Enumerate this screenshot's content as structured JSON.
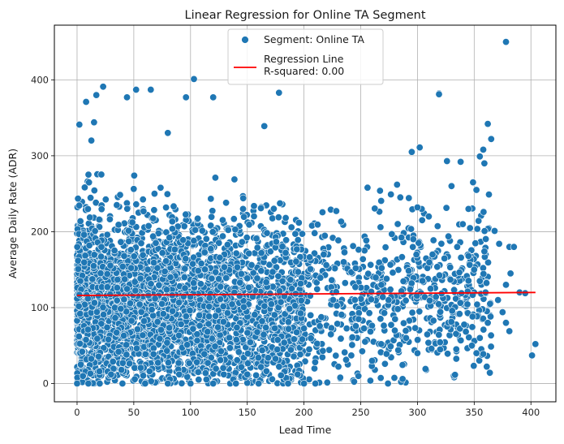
{
  "chart_data": {
    "type": "scatter",
    "title": "Linear Regression for Online TA Segment",
    "xlabel": "Lead Time",
    "ylabel": "Average Daily Rate (ADR)",
    "xlim": [
      -20,
      422
    ],
    "ylim": [
      -24,
      472
    ],
    "x_ticks": [
      0,
      50,
      100,
      150,
      200,
      250,
      300,
      350,
      400
    ],
    "y_ticks": [
      0,
      100,
      200,
      300,
      400
    ],
    "grid": true,
    "legend_position": "top-center",
    "series": [
      {
        "name": "Segment: Online TA",
        "kind": "scatter",
        "color": "#1f77b4",
        "points": [
          [
            378,
            450
          ],
          [
            103,
            401
          ],
          [
            23,
            391
          ],
          [
            52,
            387
          ],
          [
            65,
            387
          ],
          [
            8,
            371
          ],
          [
            319,
            382
          ],
          [
            178,
            383
          ],
          [
            120,
            377
          ],
          [
            44,
            377
          ],
          [
            96,
            377
          ],
          [
            17,
            380
          ],
          [
            362,
            342
          ],
          [
            319,
            381
          ],
          [
            2,
            341
          ],
          [
            15,
            344
          ],
          [
            80,
            330
          ],
          [
            165,
            339
          ],
          [
            302,
            311
          ],
          [
            338,
            292
          ],
          [
            326,
            293
          ],
          [
            358,
            308
          ],
          [
            365,
            322
          ],
          [
            355,
            299
          ],
          [
            359,
            290
          ],
          [
            363,
            249
          ],
          [
            368,
            201
          ],
          [
            372,
            184
          ],
          [
            381,
            180
          ],
          [
            385,
            180
          ],
          [
            382,
            145
          ],
          [
            378,
            130
          ],
          [
            371,
            110
          ],
          [
            375,
            94
          ],
          [
            378,
            80
          ],
          [
            381,
            69
          ],
          [
            390,
            120
          ],
          [
            395,
            119
          ],
          [
            401,
            37
          ],
          [
            404,
            52
          ],
          [
            352,
            40
          ],
          [
            358,
            39
          ],
          [
            274,
            0
          ],
          [
            260,
            30
          ],
          [
            268,
            52
          ],
          [
            186,
            0
          ],
          [
            200,
            0
          ],
          [
            210,
            0
          ],
          [
            160,
            0
          ],
          [
            140,
            0
          ],
          [
            120,
            0
          ],
          [
            100,
            0
          ],
          [
            80,
            0
          ],
          [
            60,
            0
          ],
          [
            40,
            0
          ],
          [
            20,
            0
          ],
          [
            10,
            0
          ],
          [
            0,
            0
          ],
          [
            30,
            12
          ],
          [
            90,
            12
          ],
          [
            150,
            12
          ],
          [
            232,
            8
          ],
          [
            248,
            10
          ],
          [
            256,
            258
          ],
          [
            295,
            305
          ],
          [
            282,
            262
          ],
          [
            300,
            232
          ],
          [
            310,
            220
          ],
          [
            330,
            260
          ],
          [
            345,
            230
          ],
          [
            349,
            265
          ],
          [
            352,
            255
          ],
          [
            340,
            210
          ],
          [
            335,
            180
          ],
          [
            345,
            168
          ],
          [
            350,
            150
          ],
          [
            355,
            135
          ],
          [
            360,
            120
          ],
          [
            364,
            105
          ],
          [
            362,
            80
          ],
          [
            355,
            60
          ],
          [
            348,
            50
          ],
          [
            320,
            45
          ],
          [
            300,
            40
          ],
          [
            290,
            60
          ],
          [
            280,
            70
          ]
        ]
      },
      {
        "name": "Regression Line\nR-squared: 0.00",
        "kind": "line",
        "color": "#ff0000",
        "points": [
          [
            0,
            116
          ],
          [
            404,
            120
          ]
        ]
      }
    ]
  }
}
